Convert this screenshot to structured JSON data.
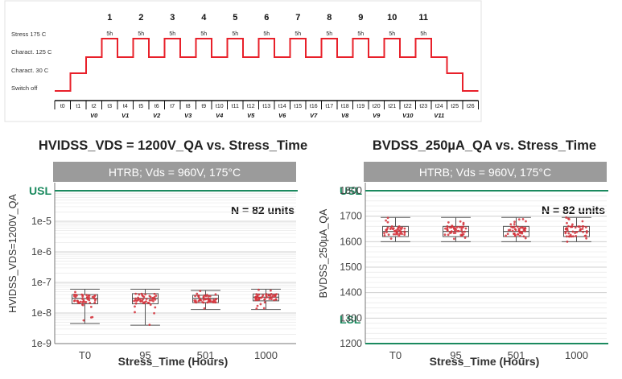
{
  "timing": {
    "levels": [
      "Stress 175 C",
      "Charact. 125 C",
      "Charact. 30 C",
      "Switch off"
    ],
    "cycle_numbers": [
      "1",
      "2",
      "3",
      "4",
      "5",
      "6",
      "7",
      "8",
      "9",
      "10",
      "11"
    ],
    "duration_label": "5h",
    "time_points": [
      "t0",
      "t1",
      "t2",
      "t3",
      "t4",
      "t5",
      "t6",
      "t7",
      "t8",
      "t9",
      "t10",
      "t11",
      "t12",
      "t13",
      "t14",
      "t15",
      "t16",
      "t17",
      "t18",
      "t19",
      "t20",
      "t21",
      "t22",
      "t23",
      "t24",
      "t25",
      "t26"
    ],
    "verify_labels": [
      "V0",
      "V1",
      "V2",
      "V3",
      "V4",
      "V5",
      "V6",
      "V7",
      "V8",
      "V9",
      "V10",
      "V11"
    ],
    "line_color": "#e8202a"
  },
  "colors": {
    "limit": "#1b8a5f",
    "banner_bg": "#9b9b9b",
    "point": "#d4313a",
    "box": "#555555",
    "text": "#333333"
  },
  "chart_data": [
    {
      "type": "box",
      "title": "HVIDSS_VDS = 1200V_QA vs. Stress_Time",
      "subtitle": "HTRB; Vds = 960V, 175°C",
      "xlabel": "Stress_Time (Hours)",
      "ylabel": "HVIDSS_VDS=1200V_QA",
      "yscale": "log",
      "ylim": [
        1e-09,
        0.0001
      ],
      "y_ticks": [
        1e-09,
        1e-08,
        1e-07,
        1e-06,
        1e-05
      ],
      "y_tick_labels": [
        "1e-9",
        "1e-8",
        "1e-7",
        "1e-6",
        "1e-5"
      ],
      "limit_label": "USL",
      "limit_value": 0.0001,
      "annotation": "N = 82 units",
      "categories": [
        "T0",
        "95",
        "501",
        "1000"
      ],
      "stats": [
        {
          "min": 4.5e-09,
          "q1": 2e-08,
          "median": 3e-08,
          "q3": 4e-08,
          "max": 6e-08
        },
        {
          "min": 4e-09,
          "q1": 2e-08,
          "median": 3e-08,
          "q3": 4.3e-08,
          "max": 6e-08
        },
        {
          "min": 1.3e-08,
          "q1": 2.2e-08,
          "median": 3e-08,
          "q3": 3.8e-08,
          "max": 5.5e-08
        },
        {
          "min": 1.3e-08,
          "q1": 2.5e-08,
          "median": 3.3e-08,
          "q3": 4.2e-08,
          "max": 6e-08
        }
      ]
    },
    {
      "type": "box",
      "title": "BVDSS_250µA_QA vs. Stress_Time",
      "subtitle": "HTRB; Vds = 960V, 175°C",
      "xlabel": "Stress_Time (Hours)",
      "ylabel": "BVDSS_250µA_QA",
      "yscale": "linear",
      "ylim": [
        1200,
        1800
      ],
      "y_ticks": [
        1200,
        1300,
        1400,
        1500,
        1600,
        1700,
        1800
      ],
      "y_tick_labels": [
        "1200",
        "1300",
        "1400",
        "1500",
        "1600",
        "1700",
        "1800"
      ],
      "upper_limit_label": "USL",
      "upper_limit_value": 1800,
      "lower_limit_label": "LSL",
      "lower_limit_value": 1200,
      "annotation": "N = 82 units",
      "categories": [
        "T0",
        "95",
        "501",
        "1000"
      ],
      "stats": [
        {
          "min": 1600,
          "q1": 1620,
          "median": 1640,
          "q3": 1660,
          "max": 1695
        },
        {
          "min": 1600,
          "q1": 1620,
          "median": 1640,
          "q3": 1660,
          "max": 1695
        },
        {
          "min": 1600,
          "q1": 1620,
          "median": 1640,
          "q3": 1660,
          "max": 1695
        },
        {
          "min": 1600,
          "q1": 1620,
          "median": 1640,
          "q3": 1660,
          "max": 1695
        }
      ]
    }
  ]
}
